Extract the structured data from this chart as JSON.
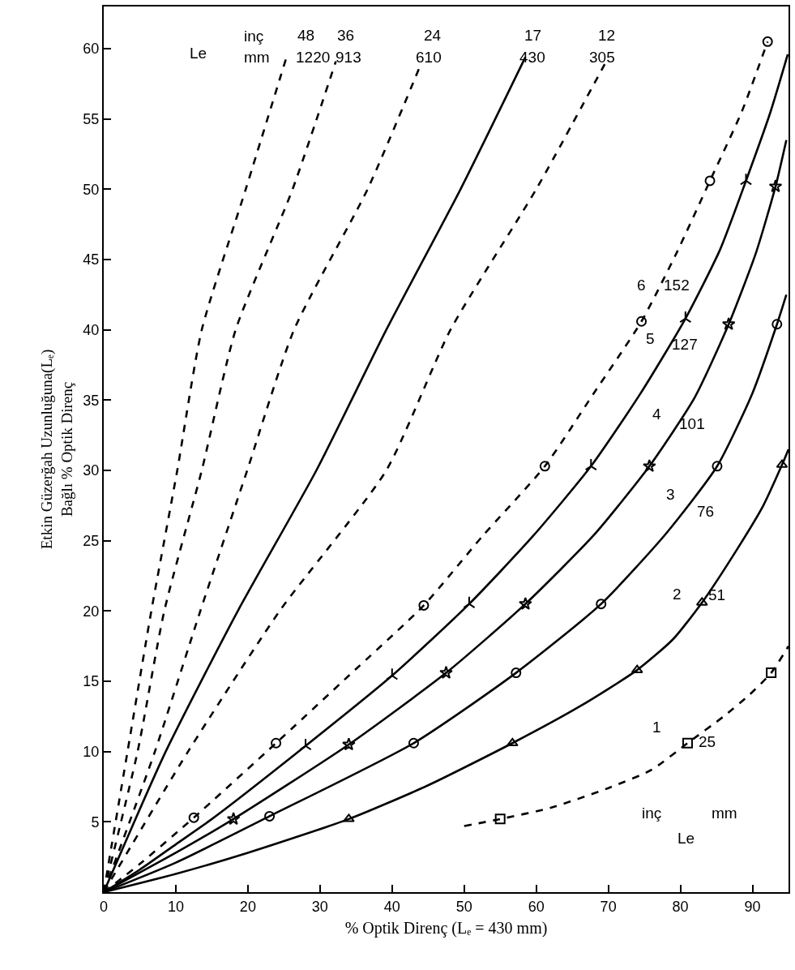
{
  "chart_data": {
    "type": "line",
    "xlabel": "% Optik Direnç (Lₑ = 430 mm)",
    "ylabel": "Etkin Güzerğah Uzunluğuna(Lₑ)\nBağlı % Optik Direnç",
    "xlim": [
      0,
      95
    ],
    "xticks": [
      0,
      10,
      20,
      30,
      40,
      50,
      60,
      70,
      80,
      90
    ],
    "ylim": [
      0,
      63
    ],
    "yticks": [
      5,
      10,
      15,
      20,
      25,
      30,
      35,
      40,
      45,
      50,
      55,
      60
    ],
    "series": [
      {
        "color": "#000000",
        "line_style": "dashed",
        "x": [
          0,
          3.3,
          6.6,
          10.2,
          13.6,
          19.7,
          25.3
        ],
        "values": [
          0,
          10,
          20,
          30,
          40,
          50,
          59.3
        ]
      },
      {
        "color": "#000000",
        "line_style": "dashed",
        "x": [
          0,
          4.7,
          8.4,
          13.6,
          18.3,
          26.2,
          32.2
        ],
        "values": [
          0,
          10,
          20,
          30,
          40,
          50,
          59.1
        ]
      },
      {
        "color": "#000000",
        "line_style": "dashed",
        "x": [
          0,
          7.1,
          13.4,
          19.9,
          26.4,
          36.6,
          44
        ],
        "values": [
          0,
          10,
          20,
          30,
          40,
          50,
          58.9
        ]
      },
      {
        "color": "#000000",
        "line_style": "solid",
        "x": [
          0,
          8.6,
          18.6,
          29.5,
          39.2,
          49.5,
          58.5
        ],
        "values": [
          0,
          10,
          20,
          30,
          40,
          50,
          59.4
        ]
      },
      {
        "color": "#000000",
        "line_style": "dashed",
        "x": [
          0,
          11.7,
          24.4,
          39.2,
          48.1,
          60,
          69.5
        ],
        "values": [
          0,
          10,
          20,
          30,
          40,
          50,
          58.9
        ]
      },
      {
        "color": "#000000",
        "line_style": "dashed",
        "x": [
          0,
          5,
          12.5,
          23.9,
          34,
          44.4,
          52.5,
          61.2,
          68,
          74.6,
          79.5,
          84.1,
          88.5,
          92.1
        ],
        "values": [
          0,
          2,
          5.3,
          10.6,
          15.4,
          20.4,
          25.3,
          30.3,
          35.5,
          40.6,
          45.5,
          50.6,
          55.5,
          60.5
        ]
      },
      {
        "type": "scatter",
        "color": "#000000",
        "marker": "circle",
        "x": [
          12.5,
          23.9,
          44.4,
          61.2,
          74.6,
          84.1,
          92.1
        ],
        "values": [
          5.3,
          10.6,
          20.4,
          30.3,
          40.6,
          50.6,
          60.5
        ]
      },
      {
        "color": "#000000",
        "line_style": "solid",
        "x": [
          0,
          5,
          10,
          15,
          28,
          40,
          50.7,
          59.5,
          67.6,
          74.5,
          80.7,
          85.5,
          89.1,
          92.5,
          94.9
        ],
        "values": [
          0,
          1.6,
          3.4,
          5.2,
          10.4,
          15.4,
          20.5,
          25.3,
          30.3,
          35.5,
          40.8,
          45.7,
          50.6,
          55.5,
          59.6
        ]
      },
      {
        "type": "scatter",
        "color": "#000000",
        "marker": "cross",
        "x": [
          28,
          40,
          50.7,
          67.6,
          80.7,
          89.1
        ],
        "values": [
          10.4,
          15.4,
          20.5,
          30.3,
          40.8,
          50.6
        ]
      },
      {
        "color": "#000000",
        "line_style": "solid",
        "x": [
          0,
          10,
          18,
          34,
          47.5,
          58.5,
          68,
          75.7,
          82,
          86.7,
          90.5,
          93.2,
          94.7
        ],
        "values": [
          0,
          2.8,
          5.2,
          10.5,
          15.6,
          20.5,
          25.4,
          30.3,
          35.2,
          40.4,
          45.5,
          50.2,
          53.5
        ]
      },
      {
        "type": "scatter",
        "color": "#000000",
        "marker": "star",
        "x": [
          18,
          34,
          47.5,
          58.5,
          75.7,
          86.7,
          93.2
        ],
        "values": [
          5.2,
          10.5,
          15.6,
          20.5,
          30.3,
          40.4,
          50.2
        ]
      },
      {
        "color": "#000000",
        "line_style": "solid",
        "x": [
          0,
          10,
          23,
          43,
          57.2,
          69,
          78,
          85.1,
          90,
          93.4,
          94.7
        ],
        "values": [
          0,
          2.1,
          5.4,
          10.6,
          15.6,
          20.5,
          25.5,
          30.3,
          35.5,
          40.4,
          42.5
        ]
      },
      {
        "type": "scatter",
        "color": "#000000",
        "marker": "circle",
        "x": [
          23,
          43,
          57.2,
          69,
          85.1,
          93.4
        ],
        "values": [
          5.4,
          10.6,
          15.6,
          20.5,
          30.3,
          40.4
        ]
      },
      {
        "color": "#000000",
        "line_style": "solid",
        "x": [
          0,
          10,
          20,
          34,
          45,
          56.7,
          66,
          74,
          79,
          83,
          88,
          91.5,
          94.1,
          95
        ],
        "values": [
          0,
          1.3,
          2.8,
          5.2,
          7.6,
          10.6,
          13.2,
          15.8,
          18,
          20.6,
          24.5,
          27.5,
          30.4,
          31.5
        ]
      },
      {
        "type": "scatter",
        "color": "#000000",
        "marker": "triangle",
        "x": [
          34,
          56.7,
          74,
          83,
          94.1
        ],
        "values": [
          5.2,
          10.6,
          15.8,
          20.6,
          30.4
        ]
      },
      {
        "color": "#000000",
        "line_style": "dashed",
        "x": [
          50,
          55,
          62,
          70,
          76,
          81,
          86,
          89.5,
          92.6,
          95
        ],
        "values": [
          4.7,
          5.2,
          6,
          7.4,
          8.7,
          10.6,
          12.5,
          14,
          15.6,
          17.5
        ]
      },
      {
        "type": "scatter",
        "color": "#000000",
        "marker": "square",
        "x": [
          55,
          81,
          92.6
        ],
        "values": [
          5.2,
          10.6,
          15.6
        ]
      }
    ],
    "annotations": [
      "Le",
      "inç",
      "mm",
      "48",
      "1220",
      "36",
      "913",
      "24",
      "610",
      "17",
      "430",
      "12",
      "305",
      "6",
      "152",
      "5",
      "127",
      "4",
      "101",
      "3",
      "76",
      "2",
      "51",
      "1",
      "25",
      "inç",
      "mm",
      "Le"
    ]
  }
}
